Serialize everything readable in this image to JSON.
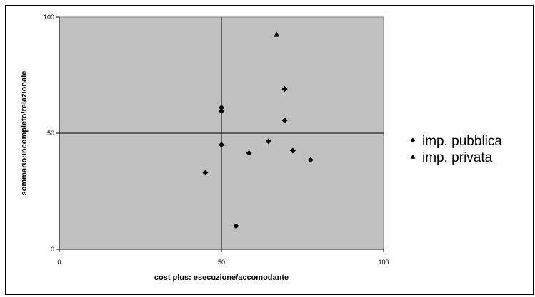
{
  "chart_data": {
    "type": "scatter",
    "title": "",
    "xlabel": "cost plus: esecuzione/accomodante",
    "ylabel": "sommario:incompleto/relazionale",
    "xlim": [
      0,
      100
    ],
    "ylim": [
      0,
      100
    ],
    "x_ticks": [
      "0",
      "50",
      "100"
    ],
    "y_ticks": [
      "0",
      "50",
      "100"
    ],
    "grid": false,
    "plot_background": "#c0c0c0",
    "reference_lines": {
      "x": 50,
      "y": 50
    },
    "legend_position": "right",
    "series": [
      {
        "name": "imp. pubblica",
        "marker": "diamond",
        "color": "#000000",
        "points": [
          {
            "x": 45,
            "y": 33
          },
          {
            "x": 50,
            "y": 61
          },
          {
            "x": 50,
            "y": 59.5
          },
          {
            "x": 50,
            "y": 45
          },
          {
            "x": 54.5,
            "y": 10
          },
          {
            "x": 58.5,
            "y": 41.5
          },
          {
            "x": 64.5,
            "y": 46.5
          },
          {
            "x": 69.5,
            "y": 69
          },
          {
            "x": 69.5,
            "y": 55.5
          },
          {
            "x": 72,
            "y": 42.5
          },
          {
            "x": 77.5,
            "y": 38.5
          }
        ]
      },
      {
        "name": "imp. privata",
        "marker": "triangle",
        "color": "#000000",
        "points": [
          {
            "x": 67,
            "y": 92.5
          }
        ]
      }
    ]
  }
}
